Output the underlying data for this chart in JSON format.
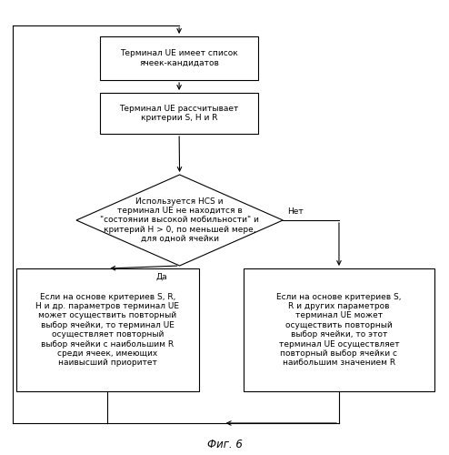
{
  "title": "Фиг. 6",
  "bg_color": "#ffffff",
  "box1_text": "Терминал UE имеет список\nячеек-кандидатов",
  "box2_text": "Терминал UE рассчитывает\nкритерии S, H и R",
  "diamond_text": "Используется HCS и\nтерминал UE не находится в\n\"состоянии высокой мобильности\" и\nкритерий H > 0, по меньшей мере,\nдля одной ячейки",
  "yes_label": "Да",
  "no_label": "Нет",
  "box3_text": "Если на основе критериев S, R,\nH и др. параметров терминал UE\nможет осуществить повторный\nвыбор ячейки, то терминал UE\nосуществляет повторный\nвыбор ячейки с наибольшим R\nсреди ячеек, имеющих\nнаивысший приоритет",
  "box4_text": "Если на основе критериев S,\nR и других параметров\nтерминал UE может\nосуществить повторный\nвыбор ячейки, то этот\nтерминал UE осуществляет\nповторный выбор ячейки с\nнаибольшим значением R",
  "font_size": 6.5,
  "font_family": "DejaVu Sans",
  "fig_width": 4.94,
  "fig_height": 5.0,
  "dpi": 100
}
